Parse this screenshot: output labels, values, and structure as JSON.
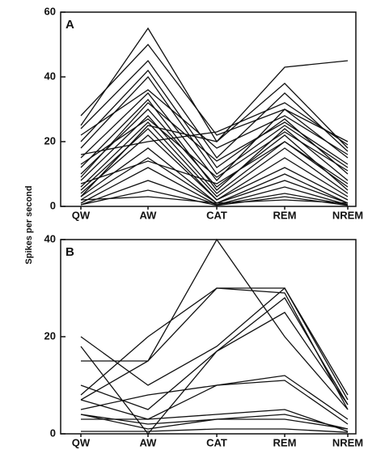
{
  "chart_data": [
    {
      "type": "line",
      "panel_label": "A",
      "ylabel": "Spikes per second",
      "color": "#111111",
      "categories": [
        "QW",
        "AW",
        "CAT",
        "REM",
        "NREM"
      ],
      "ylim": [
        0,
        60
      ],
      "yticks": [
        0,
        20,
        40,
        60
      ],
      "series": [
        {
          "values": [
            25,
            55,
            20,
            38,
            18
          ]
        },
        {
          "values": [
            28,
            50,
            22,
            30,
            20
          ]
        },
        {
          "values": [
            24,
            45,
            15,
            35,
            17
          ]
        },
        {
          "values": [
            20,
            42,
            12,
            27,
            10
          ]
        },
        {
          "values": [
            18,
            40,
            10,
            25,
            12
          ]
        },
        {
          "values": [
            15,
            35,
            8,
            30,
            15
          ]
        },
        {
          "values": [
            12,
            33,
            5,
            24,
            8
          ]
        },
        {
          "values": [
            10,
            30,
            6,
            22,
            5
          ]
        },
        {
          "values": [
            8,
            28,
            4,
            20,
            7
          ]
        },
        {
          "values": [
            6,
            26,
            3,
            18,
            4
          ]
        },
        {
          "values": [
            5,
            24,
            2,
            15,
            3
          ]
        },
        {
          "values": [
            4,
            22,
            2,
            12,
            2
          ]
        },
        {
          "values": [
            3,
            18,
            1,
            10,
            1
          ]
        },
        {
          "values": [
            2,
            15,
            1,
            8,
            1
          ]
        },
        {
          "values": [
            1,
            12,
            0.5,
            6,
            0.5
          ]
        },
        {
          "values": [
            0.5,
            8,
            0.5,
            4,
            0.5
          ]
        },
        {
          "values": [
            0.5,
            5,
            0.3,
            3,
            0.3
          ]
        },
        {
          "values": [
            3,
            25,
            20,
            43,
            45
          ]
        },
        {
          "values": [
            9,
            32,
            14,
            26,
            13
          ]
        },
        {
          "values": [
            16,
            20,
            23,
            32,
            19
          ]
        },
        {
          "values": [
            7,
            14,
            7,
            20,
            6
          ]
        },
        {
          "values": [
            2,
            3,
            1,
            2,
            1
          ]
        },
        {
          "values": [
            13,
            27,
            9,
            23,
            11
          ]
        },
        {
          "values": [
            22,
            36,
            18,
            28,
            16
          ]
        }
      ]
    },
    {
      "type": "line",
      "panel_label": "B",
      "color": "#111111",
      "categories": [
        "QW",
        "AW",
        "CAT",
        "REM",
        "NREM"
      ],
      "ylim": [
        0,
        40
      ],
      "yticks": [
        0,
        20,
        40
      ],
      "series": [
        {
          "values": [
            7,
            15,
            40,
            20,
            5
          ]
        },
        {
          "values": [
            15,
            15,
            30,
            30,
            8
          ]
        },
        {
          "values": [
            20,
            10,
            18,
            30,
            7
          ]
        },
        {
          "values": [
            18,
            0,
            17,
            28,
            6
          ]
        },
        {
          "values": [
            8,
            20,
            30,
            29,
            5
          ]
        },
        {
          "values": [
            10,
            5,
            17,
            25,
            6
          ]
        },
        {
          "values": [
            5,
            8,
            10,
            11,
            2
          ]
        },
        {
          "values": [
            7,
            3,
            10,
            12,
            3
          ]
        },
        {
          "values": [
            4,
            2,
            3,
            4,
            1
          ]
        },
        {
          "values": [
            3,
            3,
            4,
            5,
            0.5
          ]
        },
        {
          "values": [
            0.5,
            0.5,
            1,
            1,
            0.3
          ]
        },
        {
          "values": [
            4,
            1,
            3,
            3,
            1
          ]
        }
      ]
    }
  ]
}
